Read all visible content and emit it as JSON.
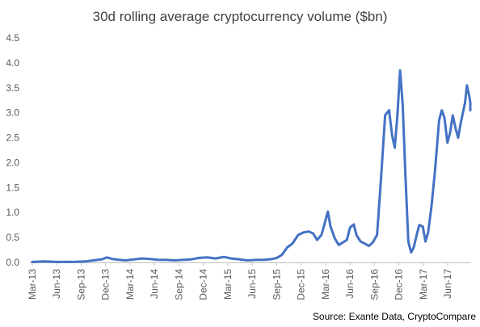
{
  "chart_data": {
    "type": "line",
    "title": "30d rolling average cryptocurrency volume ($bn)",
    "xlabel": "",
    "ylabel": "",
    "ylim": [
      0,
      4.5
    ],
    "y_ticks": [
      "0.0",
      "0.5",
      "1.0",
      "1.5",
      "2.0",
      "2.5",
      "3.0",
      "3.5",
      "4.0",
      "4.5"
    ],
    "x_ticks": [
      "Mar-13",
      "Jun-13",
      "Sep-13",
      "Dec-13",
      "Mar-14",
      "Jun-14",
      "Sep-14",
      "Dec-14",
      "Mar-15",
      "Jun-15",
      "Sep-15",
      "Dec-15",
      "Mar-16",
      "Jun-16",
      "Sep-16",
      "Dec-16",
      "Mar-17",
      "Jun-17"
    ],
    "grid": false,
    "legend": "none",
    "source": "Source: Exante Data, CryptoCompare",
    "series": [
      {
        "color": "#4472C4",
        "x": [
          "2013-03-01",
          "2013-04-15",
          "2013-06-01",
          "2013-08-01",
          "2013-09-15",
          "2013-10-15",
          "2013-11-15",
          "2013-12-05",
          "2013-12-25",
          "2014-01-20",
          "2014-02-15",
          "2014-03-15",
          "2014-04-15",
          "2014-05-15",
          "2014-06-15",
          "2014-07-15",
          "2014-08-15",
          "2014-09-15",
          "2014-10-15",
          "2014-11-15",
          "2014-12-15",
          "2015-01-15",
          "2015-02-15",
          "2015-03-15",
          "2015-04-15",
          "2015-05-15",
          "2015-06-15",
          "2015-07-15",
          "2015-08-15",
          "2015-09-01",
          "2015-09-20",
          "2015-10-10",
          "2015-10-30",
          "2015-11-20",
          "2015-12-10",
          "2015-12-30",
          "2016-01-15",
          "2016-01-30",
          "2016-02-15",
          "2016-02-28",
          "2016-03-10",
          "2016-03-20",
          "2016-04-05",
          "2016-04-20",
          "2016-05-05",
          "2016-05-20",
          "2016-06-01",
          "2016-06-15",
          "2016-06-25",
          "2016-07-10",
          "2016-07-25",
          "2016-08-10",
          "2016-08-25",
          "2016-09-10",
          "2016-09-25",
          "2016-10-10",
          "2016-10-25",
          "2016-11-05",
          "2016-11-15",
          "2016-11-25",
          "2016-12-05",
          "2016-12-15",
          "2016-12-25",
          "2017-01-05",
          "2017-01-15",
          "2017-01-25",
          "2017-02-05",
          "2017-02-15",
          "2017-02-28",
          "2017-03-10",
          "2017-03-20",
          "2017-04-01",
          "2017-04-15",
          "2017-04-30",
          "2017-05-10",
          "2017-05-20",
          "2017-05-31",
          "2017-06-10",
          "2017-06-20",
          "2017-06-30",
          "2017-07-10",
          "2017-07-20",
          "2017-07-30",
          "2017-08-05",
          "2017-08-12",
          "2017-08-20",
          "2017-08-28",
          "2017-09-05"
        ],
        "values": [
          0.01,
          0.02,
          0.01,
          0.01,
          0.02,
          0.04,
          0.06,
          0.1,
          0.07,
          0.05,
          0.04,
          0.06,
          0.08,
          0.07,
          0.05,
          0.05,
          0.04,
          0.05,
          0.06,
          0.09,
          0.1,
          0.08,
          0.11,
          0.08,
          0.06,
          0.04,
          0.05,
          0.05,
          0.07,
          0.09,
          0.15,
          0.3,
          0.38,
          0.55,
          0.6,
          0.62,
          0.58,
          0.45,
          0.55,
          0.8,
          1.02,
          0.72,
          0.48,
          0.35,
          0.4,
          0.45,
          0.7,
          0.76,
          0.55,
          0.42,
          0.38,
          0.33,
          0.4,
          0.55,
          1.7,
          2.95,
          3.05,
          2.55,
          2.3,
          2.95,
          3.85,
          3.15,
          1.75,
          0.42,
          0.2,
          0.3,
          0.55,
          0.75,
          0.72,
          0.42,
          0.6,
          1.1,
          1.85,
          2.85,
          3.05,
          2.9,
          2.4,
          2.6,
          2.95,
          2.7,
          2.5,
          2.8,
          3.05,
          3.2,
          3.55,
          3.35,
          3.2,
          3.05
        ]
      }
    ]
  }
}
